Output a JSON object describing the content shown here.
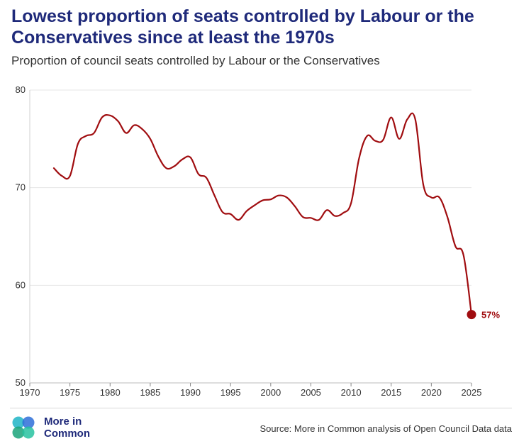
{
  "title": "Lowest proportion of seats controlled by Labour or the Conservatives since at least the 1970s",
  "subtitle": "Proportion of council seats controlled by Labour or the Conservatives",
  "source": "Source: More in Common analysis of Open Council Data data",
  "logo": {
    "line1": "More in",
    "line2": "Common"
  },
  "colors": {
    "line": "#a00d10",
    "title": "#1f2a7a",
    "grid": "#e6e6e6"
  },
  "chart_data": {
    "type": "line",
    "title": "Lowest proportion of seats controlled by Labour or the Conservatives since at least the 1970s",
    "subtitle": "Proportion of council seats controlled by Labour or the Conservatives",
    "xlabel": "",
    "ylabel": "",
    "xlim": [
      1970,
      2025
    ],
    "ylim": [
      50,
      80
    ],
    "xticks": [
      1970,
      1975,
      1980,
      1985,
      1990,
      1995,
      2000,
      2005,
      2010,
      2015,
      2020,
      2025
    ],
    "yticks": [
      50,
      60,
      70,
      80
    ],
    "grid": "horizontal",
    "end_label": "57%",
    "series": [
      {
        "x": [
          1973,
          1974,
          1975,
          1976,
          1977,
          1978,
          1979,
          1980,
          1981,
          1982,
          1983,
          1984,
          1985,
          1986,
          1987,
          1988,
          1989,
          1990,
          1991,
          1992,
          1993,
          1994,
          1995,
          1996,
          1997,
          1998,
          1999,
          2000,
          2001,
          2002,
          2003,
          2004,
          2005,
          2006,
          2007,
          2008,
          2009,
          2010,
          2011,
          2012,
          2013,
          2014,
          2015,
          2016,
          2017,
          2018,
          2019,
          2020,
          2021,
          2022,
          2023,
          2024,
          2025
        ],
        "values": [
          72.0,
          71.2,
          71.2,
          74.5,
          75.3,
          75.6,
          77.2,
          77.4,
          76.8,
          75.6,
          76.4,
          76.0,
          75.0,
          73.2,
          72.0,
          72.2,
          72.9,
          73.1,
          71.4,
          71.0,
          69.2,
          67.5,
          67.3,
          66.7,
          67.6,
          68.2,
          68.7,
          68.8,
          69.2,
          69.0,
          68.1,
          67.0,
          66.9,
          66.7,
          67.7,
          67.1,
          67.4,
          68.4,
          73.0,
          75.3,
          74.8,
          74.9,
          77.2,
          75.0,
          77.0,
          77.0,
          70.3,
          69.0,
          69.0,
          67.0,
          64.0,
          63.1,
          57.0
        ]
      }
    ]
  }
}
